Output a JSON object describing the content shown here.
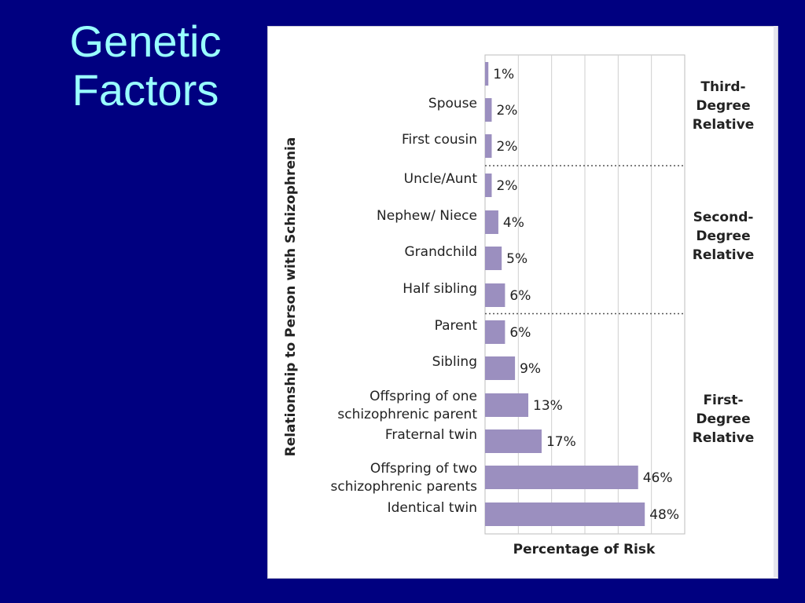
{
  "slide": {
    "title_line1": "Genetic",
    "title_line2": "Factors"
  },
  "colors": {
    "background": "#000080",
    "title": "#99ffff",
    "bar": "#9b8fbf",
    "panel": "#ffffff"
  },
  "chart_data": {
    "type": "bar",
    "orientation": "horizontal",
    "xlabel": "Percentage of Risk",
    "ylabel": "Relationship to Person with Schizophrenia",
    "xlim": [
      0,
      60
    ],
    "grid": true,
    "categories": [
      [
        "",
        ""
      ],
      [
        "Spouse",
        ""
      ],
      [
        "First cousin",
        ""
      ],
      [
        "Uncle/Aunt",
        ""
      ],
      [
        "Nephew/ Niece",
        ""
      ],
      [
        "Grandchild",
        ""
      ],
      [
        "Half sibling",
        ""
      ],
      [
        "Parent",
        ""
      ],
      [
        "Sibling",
        ""
      ],
      [
        "Offspring of one",
        "schizophrenic parent"
      ],
      [
        "Fraternal twin",
        ""
      ],
      [
        "Offspring of two",
        "schizophrenic parents"
      ],
      [
        "Identical twin",
        ""
      ]
    ],
    "values": [
      1,
      2,
      2,
      2,
      4,
      5,
      6,
      6,
      9,
      13,
      17,
      46,
      48
    ],
    "value_labels": [
      "1%",
      "2%",
      "2%",
      "2%",
      "4%",
      "5%",
      "6%",
      "6%",
      "9%",
      "13%",
      "17%",
      "46%",
      "48%"
    ],
    "groups": [
      {
        "lines": [
          "Third-",
          "Degree",
          "Relative"
        ],
        "from": 0,
        "to": 2
      },
      {
        "lines": [
          "Second-",
          "Degree",
          "Relative"
        ],
        "from": 3,
        "to": 6
      },
      {
        "lines": [
          "First-",
          "Degree",
          "Relative"
        ],
        "from": 7,
        "to": 12
      }
    ]
  }
}
